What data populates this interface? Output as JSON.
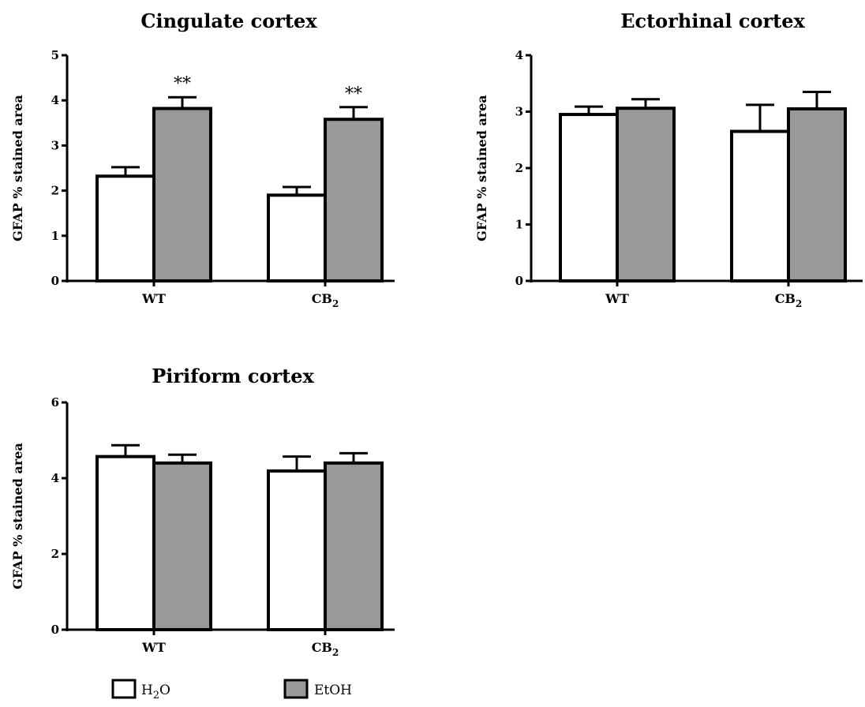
{
  "legend": [
    {
      "label": "H",
      "sub": "2",
      "tail": "O",
      "color": "#ffffff"
    },
    {
      "label": "EtOH",
      "sub": "",
      "tail": "",
      "color": "#999999"
    }
  ],
  "chart_data": [
    {
      "type": "bar",
      "title": "Cingulate cortex",
      "ylabel": "GFAP % stained area",
      "categories": [
        {
          "label": "WT",
          "sub": ""
        },
        {
          "label": "CB",
          "sub": "2"
        }
      ],
      "ylim": [
        0,
        5
      ],
      "yticks": [
        0,
        1,
        2,
        3,
        4,
        5
      ],
      "series": [
        {
          "name": "H2O",
          "color": "#ffffff",
          "values": [
            2.32,
            1.9
          ],
          "errors": [
            0.2,
            0.18
          ]
        },
        {
          "name": "EtOH",
          "color": "#999999",
          "values": [
            3.82,
            3.58
          ],
          "errors": [
            0.25,
            0.27
          ]
        }
      ],
      "annotations": [
        {
          "category": 0,
          "series": 1,
          "text": "**"
        },
        {
          "category": 1,
          "series": 1,
          "text": "**"
        }
      ]
    },
    {
      "type": "bar",
      "title": "Ectorhinal cortex",
      "ylabel": "GFAP % stained area",
      "categories": [
        {
          "label": "WT",
          "sub": ""
        },
        {
          "label": "CB",
          "sub": "2"
        }
      ],
      "ylim": [
        0,
        4
      ],
      "yticks": [
        0,
        1,
        2,
        3,
        4
      ],
      "series": [
        {
          "name": "H2O",
          "color": "#ffffff",
          "values": [
            2.95,
            2.65
          ],
          "errors": [
            0.14,
            0.47
          ]
        },
        {
          "name": "EtOH",
          "color": "#999999",
          "values": [
            3.06,
            3.05
          ],
          "errors": [
            0.16,
            0.3
          ]
        }
      ],
      "annotations": []
    },
    {
      "type": "bar",
      "title": "Piriform cortex",
      "ylabel": "GFAP % stained area",
      "categories": [
        {
          "label": "WT",
          "sub": ""
        },
        {
          "label": "CB",
          "sub": "2"
        }
      ],
      "ylim": [
        0,
        6
      ],
      "yticks": [
        0,
        2,
        4,
        6
      ],
      "series": [
        {
          "name": "H2O",
          "color": "#ffffff",
          "values": [
            4.57,
            4.19
          ],
          "errors": [
            0.3,
            0.38
          ]
        },
        {
          "name": "EtOH",
          "color": "#999999",
          "values": [
            4.4,
            4.4
          ],
          "errors": [
            0.22,
            0.26
          ]
        }
      ],
      "annotations": []
    }
  ]
}
